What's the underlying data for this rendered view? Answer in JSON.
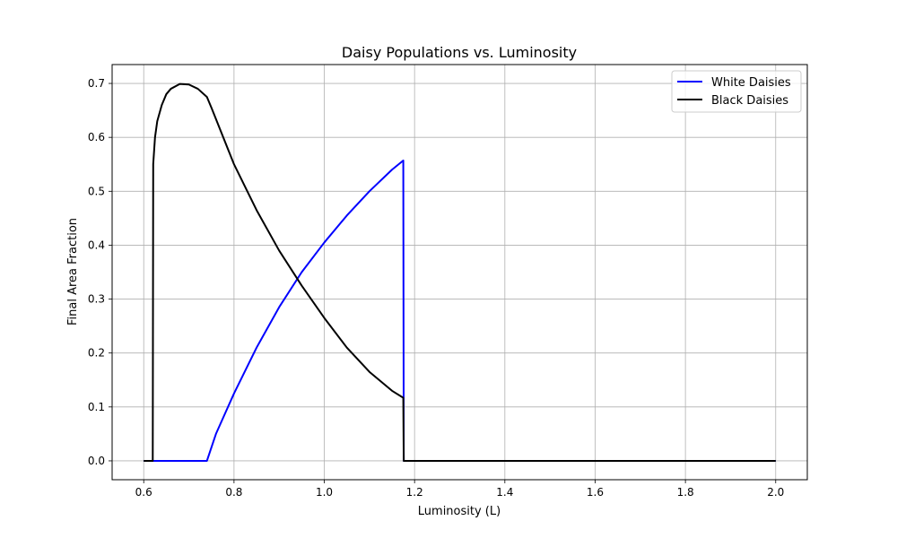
{
  "chart_data": {
    "type": "line",
    "title": "Daisy Populations vs. Luminosity",
    "xlabel": "Luminosity (L)",
    "ylabel": "Final Area Fraction",
    "xlim": [
      0.53,
      2.07
    ],
    "ylim": [
      -0.035,
      0.735
    ],
    "xticks": [
      0.6,
      0.8,
      1.0,
      1.2,
      1.4,
      1.6,
      1.8,
      2.0
    ],
    "xtick_labels": [
      "0.6",
      "0.8",
      "1.0",
      "1.2",
      "1.4",
      "1.6",
      "1.8",
      "2.0"
    ],
    "yticks": [
      0.0,
      0.1,
      0.2,
      0.3,
      0.4,
      0.5,
      0.6,
      0.7
    ],
    "ytick_labels": [
      "0.0",
      "0.1",
      "0.2",
      "0.3",
      "0.4",
      "0.5",
      "0.6",
      "0.7"
    ],
    "grid": true,
    "legend_position": "top-right",
    "series": [
      {
        "name": "White Daisies",
        "color": "#0000ff",
        "x": [
          0.6,
          0.74,
          0.76,
          0.8,
          0.85,
          0.9,
          0.95,
          1.0,
          1.05,
          1.1,
          1.15,
          1.175,
          1.176,
          2.0
        ],
        "y": [
          0.0,
          0.0,
          0.05,
          0.125,
          0.21,
          0.285,
          0.35,
          0.405,
          0.455,
          0.5,
          0.54,
          0.557,
          0.0,
          0.0
        ]
      },
      {
        "name": "Black Daisies",
        "color": "#000000",
        "x": [
          0.6,
          0.62,
          0.621,
          0.625,
          0.63,
          0.64,
          0.65,
          0.66,
          0.68,
          0.7,
          0.72,
          0.74,
          0.75,
          0.8,
          0.85,
          0.9,
          0.95,
          1.0,
          1.05,
          1.1,
          1.15,
          1.175,
          1.176,
          2.0
        ],
        "y": [
          0.0,
          0.0,
          0.55,
          0.6,
          0.63,
          0.66,
          0.68,
          0.69,
          0.699,
          0.698,
          0.69,
          0.675,
          0.655,
          0.55,
          0.465,
          0.39,
          0.325,
          0.265,
          0.21,
          0.165,
          0.13,
          0.117,
          0.0,
          0.0
        ]
      }
    ]
  }
}
